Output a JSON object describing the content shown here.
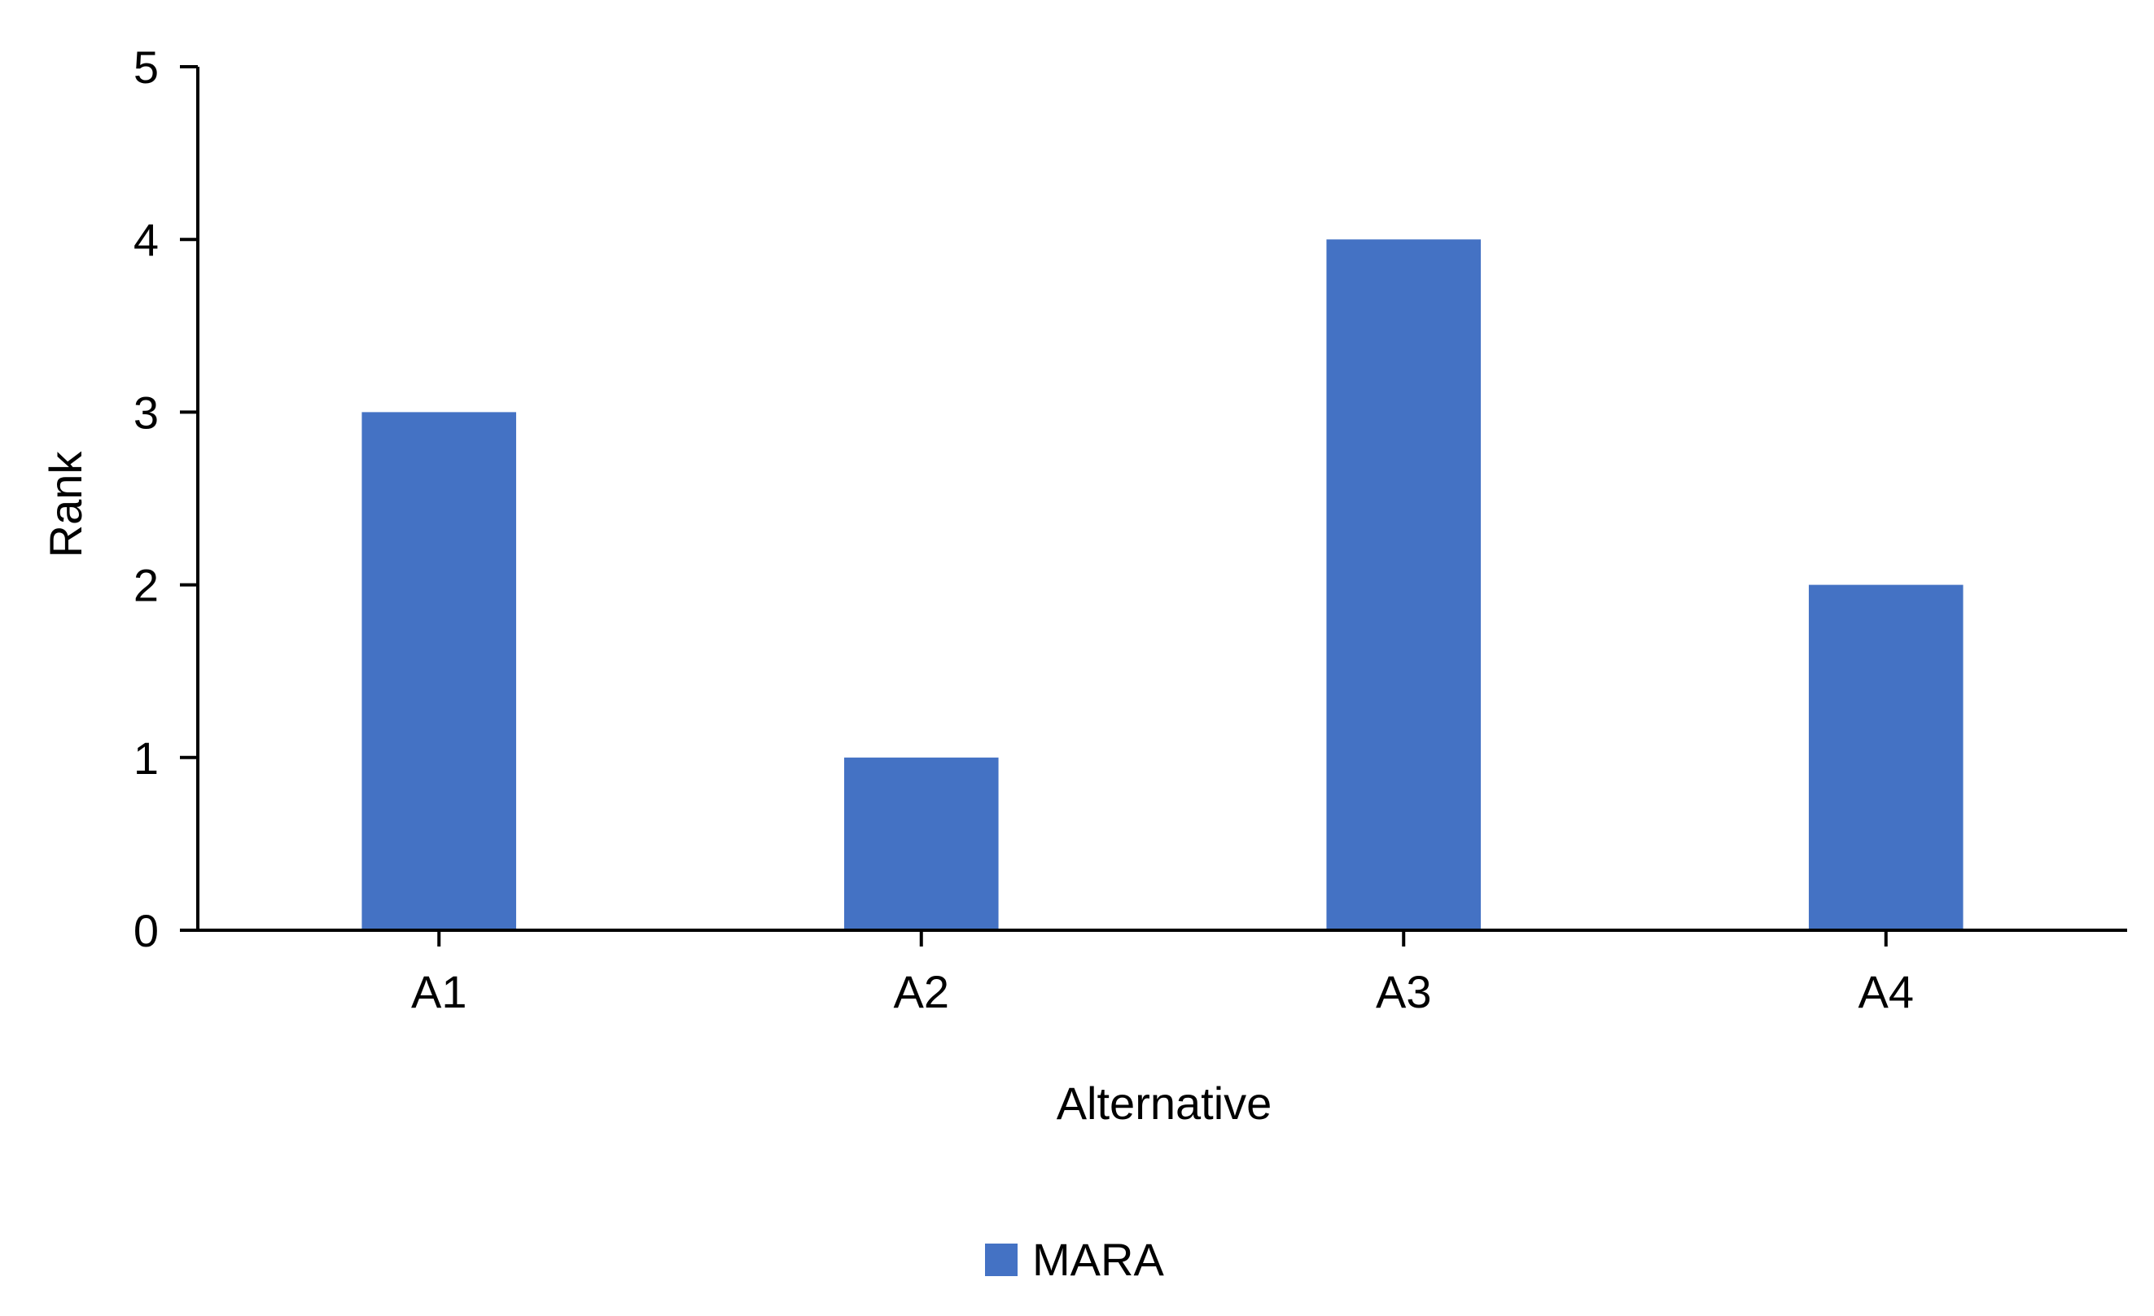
{
  "chart_data": {
    "type": "bar",
    "title": "",
    "xlabel": "Alternative",
    "ylabel": "Rank",
    "categories": [
      "A1",
      "A2",
      "A3",
      "A4"
    ],
    "series": [
      {
        "name": "MARA",
        "values": [
          3,
          1,
          4,
          2
        ],
        "color": "#4472C4"
      }
    ],
    "ylim": [
      0,
      5
    ],
    "yticks": [
      "0",
      "1",
      "2",
      "3",
      "4",
      "5"
    ],
    "grid": false,
    "legend": "bottom-center",
    "axis_color": "#000000"
  }
}
